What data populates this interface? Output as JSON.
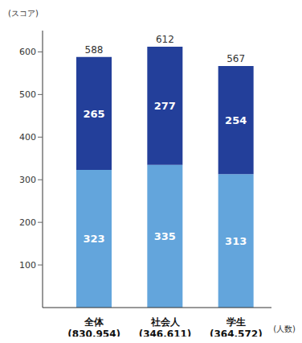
{
  "chart_data": {
    "type": "bar",
    "stacked": true,
    "data_labels": true,
    "grid": false,
    "y_label": "(スコア)",
    "x_label": "(人数)",
    "categories": [
      "全体",
      "社会人",
      "学生"
    ],
    "category_sublabels": [
      "(830,954)",
      "(346,611)",
      "(364,572)"
    ],
    "series": [
      {
        "color": "#63a5dc",
        "values": [
          323,
          335,
          313
        ]
      },
      {
        "color": "#233f9a",
        "values": [
          265,
          277,
          254
        ]
      }
    ],
    "totals": [
      588,
      612,
      567
    ],
    "ylim": [
      0,
      650
    ],
    "yticks": [
      100,
      200,
      300,
      400,
      500,
      600
    ]
  }
}
